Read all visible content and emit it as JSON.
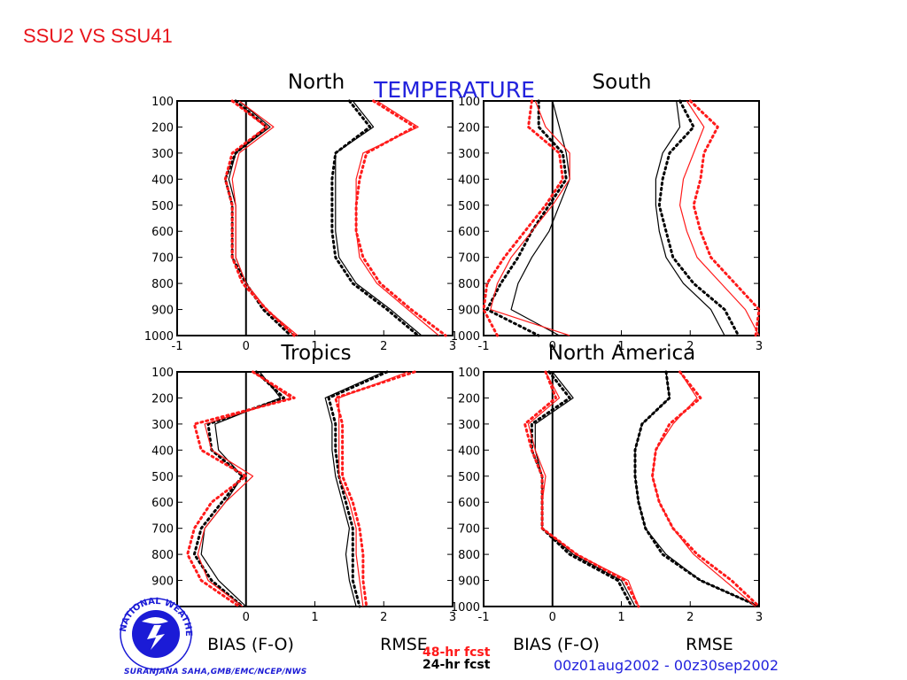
{
  "slide": {
    "title": "SSU2 VS SSU41",
    "credit": "SURANJANA SAHA,GMB/EMC/NCEP/NWS",
    "logo_text": "NATIONAL WEATHER SERVICE",
    "logo_icon": "nws-logo-icon"
  },
  "colors": {
    "red": "#ff1a1a",
    "black": "#000000",
    "blue": "#2222dd",
    "slide_title": "#e8141b"
  },
  "chart_data": {
    "type": "line",
    "title": "TEMPERATURE",
    "date_range": "00z01aug2002 - 00z30sep2002",
    "xlabel_left": "BIAS (F-O)",
    "xlabel_right": "RMSE",
    "xlim": [
      -1,
      3
    ],
    "ylim": [
      1000,
      100
    ],
    "yticks": [
      100,
      200,
      300,
      400,
      500,
      600,
      700,
      800,
      900,
      1000
    ],
    "xticks": [
      -1,
      0,
      1,
      2,
      3
    ],
    "legend": [
      {
        "label": "48-hr fcst",
        "color": "#ff1a1a"
      },
      {
        "label": "24-hr fcst",
        "color": "#000000"
      }
    ],
    "levels": [
      100,
      200,
      300,
      400,
      500,
      600,
      700,
      800,
      900,
      1000
    ],
    "panels": [
      {
        "name": "North",
        "series": {
          "bias_solid_black": [
            -0.1,
            0.35,
            -0.15,
            -0.25,
            -0.15,
            -0.15,
            -0.15,
            0.0,
            0.3,
            0.7
          ],
          "bias_dotted_black": [
            -0.15,
            0.3,
            -0.15,
            -0.3,
            -0.2,
            -0.2,
            -0.2,
            0.0,
            0.25,
            0.65
          ],
          "bias_solid_red": [
            -0.1,
            0.4,
            -0.1,
            -0.2,
            -0.15,
            -0.15,
            -0.15,
            0.0,
            0.3,
            0.75
          ],
          "bias_dotted_red": [
            -0.2,
            0.3,
            -0.2,
            -0.3,
            -0.2,
            -0.2,
            -0.2,
            -0.05,
            0.3,
            0.7
          ],
          "rmse_solid_black": [
            1.55,
            1.85,
            1.3,
            1.3,
            1.3,
            1.3,
            1.35,
            1.6,
            2.1,
            2.55
          ],
          "rmse_dotted_black": [
            1.5,
            1.8,
            1.3,
            1.25,
            1.25,
            1.25,
            1.3,
            1.55,
            2.05,
            2.5
          ],
          "rmse_solid_red": [
            1.9,
            2.5,
            1.7,
            1.6,
            1.6,
            1.6,
            1.65,
            1.9,
            2.35,
            2.8
          ],
          "rmse_dotted_red": [
            1.85,
            2.45,
            1.75,
            1.65,
            1.6,
            1.6,
            1.7,
            1.95,
            2.4,
            2.9
          ]
        }
      },
      {
        "name": "South",
        "series": {
          "bias_solid_black": [
            0.0,
            0.1,
            0.2,
            0.25,
            0.1,
            -0.05,
            -0.3,
            -0.5,
            -0.6,
            0.1
          ],
          "bias_dotted_black": [
            -0.2,
            -0.2,
            0.15,
            0.2,
            -0.05,
            -0.3,
            -0.5,
            -0.75,
            -0.95,
            -0.2
          ],
          "bias_solid_red": [
            -0.25,
            -0.1,
            0.25,
            0.25,
            0.0,
            -0.3,
            -0.6,
            -0.8,
            -0.9,
            0.25
          ],
          "bias_dotted_red": [
            -0.3,
            -0.35,
            0.1,
            0.15,
            -0.1,
            -0.4,
            -0.7,
            -0.95,
            -1.0,
            -0.8
          ],
          "rmse_solid_black": [
            1.8,
            1.85,
            1.6,
            1.5,
            1.5,
            1.55,
            1.65,
            1.9,
            2.3,
            2.5
          ],
          "rmse_dotted_black": [
            1.85,
            2.05,
            1.7,
            1.6,
            1.55,
            1.65,
            1.75,
            2.05,
            2.5,
            2.7
          ],
          "rmse_solid_red": [
            1.95,
            2.2,
            2.05,
            1.9,
            1.85,
            1.95,
            2.1,
            2.45,
            2.8,
            3.0
          ],
          "rmse_dotted_red": [
            2.0,
            2.4,
            2.2,
            2.15,
            2.05,
            2.15,
            2.3,
            2.65,
            3.0,
            2.95
          ]
        }
      },
      {
        "name": "Tropics",
        "series": {
          "bias_solid_black": [
            0.2,
            0.5,
            -0.45,
            -0.4,
            -0.05,
            -0.3,
            -0.6,
            -0.65,
            -0.4,
            0.0
          ],
          "bias_dotted_black": [
            0.15,
            0.55,
            -0.55,
            -0.5,
            -0.05,
            -0.35,
            -0.65,
            -0.75,
            -0.5,
            -0.05
          ],
          "bias_solid_red": [
            0.1,
            0.65,
            -0.6,
            -0.5,
            0.1,
            -0.3,
            -0.6,
            -0.7,
            -0.55,
            -0.05
          ],
          "bias_dotted_red": [
            0.1,
            0.7,
            -0.75,
            -0.65,
            0.0,
            -0.5,
            -0.75,
            -0.85,
            -0.65,
            -0.1
          ],
          "rmse_solid_black": [
            2.0,
            1.15,
            1.25,
            1.25,
            1.3,
            1.4,
            1.5,
            1.45,
            1.5,
            1.6
          ],
          "rmse_dotted_black": [
            2.05,
            1.2,
            1.3,
            1.3,
            1.35,
            1.45,
            1.55,
            1.55,
            1.55,
            1.65
          ],
          "rmse_solid_red": [
            2.35,
            1.35,
            1.35,
            1.35,
            1.35,
            1.5,
            1.6,
            1.6,
            1.65,
            1.7
          ],
          "rmse_dotted_red": [
            2.45,
            1.3,
            1.4,
            1.4,
            1.4,
            1.55,
            1.65,
            1.7,
            1.7,
            1.75
          ]
        }
      },
      {
        "name": "North America",
        "series": {
          "bias_solid_black": [
            0.0,
            0.3,
            -0.25,
            -0.25,
            -0.15,
            -0.15,
            -0.15,
            0.3,
            1.0,
            1.2
          ],
          "bias_dotted_black": [
            -0.05,
            0.25,
            -0.3,
            -0.3,
            -0.15,
            -0.15,
            -0.15,
            0.25,
            0.95,
            1.15
          ],
          "bias_solid_red": [
            -0.1,
            0.1,
            -0.35,
            -0.25,
            -0.1,
            -0.15,
            -0.15,
            0.35,
            1.1,
            1.25
          ],
          "bias_dotted_red": [
            -0.1,
            0.05,
            -0.4,
            -0.3,
            -0.15,
            -0.15,
            -0.15,
            0.35,
            1.05,
            1.25
          ],
          "rmse_solid_black": [
            1.65,
            1.7,
            1.3,
            1.2,
            1.2,
            1.25,
            1.35,
            1.65,
            2.15,
            3.0
          ],
          "rmse_dotted_black": [
            1.65,
            1.7,
            1.3,
            1.2,
            1.2,
            1.25,
            1.35,
            1.6,
            2.15,
            3.0
          ],
          "rmse_solid_red": [
            1.85,
            2.1,
            1.75,
            1.5,
            1.45,
            1.55,
            1.75,
            2.05,
            2.5,
            2.95
          ],
          "rmse_dotted_red": [
            1.85,
            2.15,
            1.7,
            1.5,
            1.45,
            1.55,
            1.75,
            2.1,
            2.6,
            3.0
          ]
        }
      }
    ]
  }
}
